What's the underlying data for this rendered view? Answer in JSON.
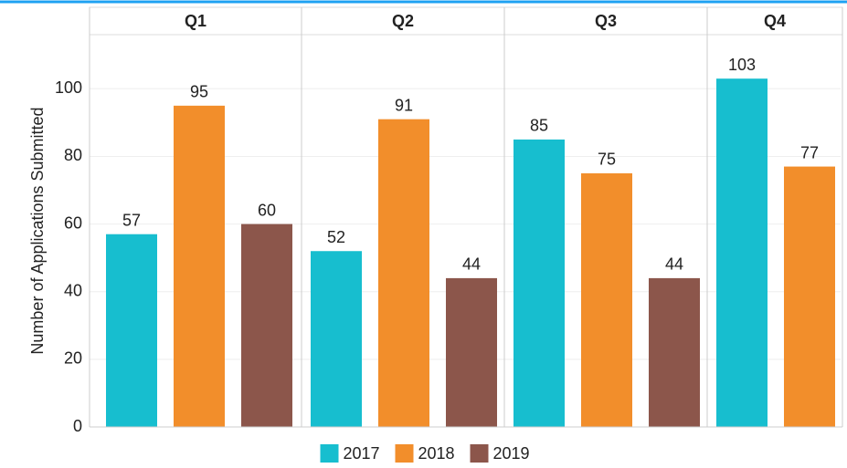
{
  "chart_data": {
    "type": "bar",
    "y_label": "Number of Applications Submitted",
    "categories": [
      "Q1",
      "Q2",
      "Q3",
      "Q4"
    ],
    "series": [
      {
        "name": "2017",
        "color": "#17becf",
        "values": [
          57,
          52,
          85,
          103
        ]
      },
      {
        "name": "2018",
        "color": "#f28e2b",
        "values": [
          95,
          91,
          75,
          77
        ]
      },
      {
        "name": "2019",
        "color": "#8c564b",
        "values": [
          60,
          44,
          44,
          null
        ]
      }
    ],
    "ylim": [
      0,
      116
    ],
    "yticks": [
      0,
      20,
      40,
      60,
      80,
      100
    ],
    "grid": true,
    "legend": "bottom"
  }
}
